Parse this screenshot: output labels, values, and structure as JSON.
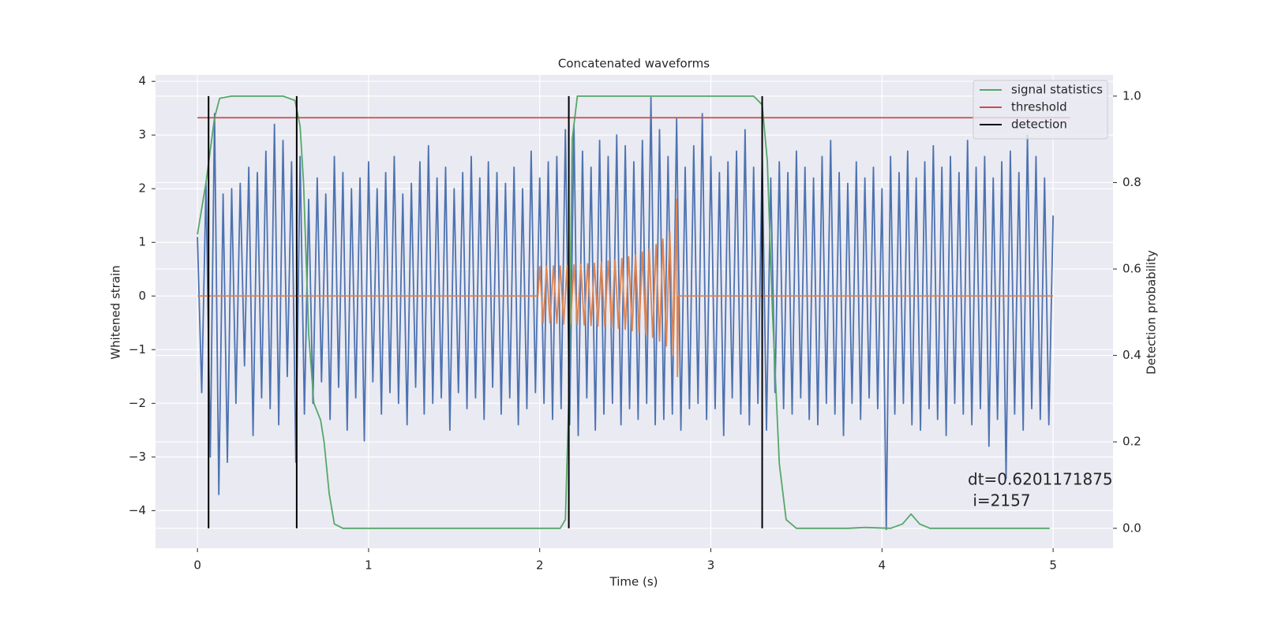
{
  "chart_data": {
    "type": "line",
    "title": "Concatenated waveforms",
    "xlabel": "Time (s)",
    "ylabel": "Whitened strain",
    "y2label": "Detection probability",
    "xlim": [
      -0.245,
      5.35
    ],
    "xticks": [
      0,
      1,
      2,
      3,
      4,
      5
    ],
    "ylim": [
      -4.7,
      4.12
    ],
    "yticks": [
      {
        "value": -4,
        "label": "−4"
      },
      {
        "value": -3,
        "label": "−3"
      },
      {
        "value": -2,
        "label": "−2"
      },
      {
        "value": -1,
        "label": "−1"
      },
      0,
      1,
      2,
      3,
      4
    ],
    "y2lim": [
      -0.046,
      1.049
    ],
    "y2ticks": [
      {
        "value": 0,
        "label": "0.0"
      },
      0.2,
      0.4,
      0.6,
      0.8,
      {
        "value": 1,
        "label": "1.0"
      }
    ],
    "grid": true,
    "legend": "upper right",
    "series": [
      {
        "color": "#4c72b0",
        "x": [
          0,
          0.025,
          0.05,
          0.075,
          0.1,
          0.125,
          0.15,
          0.175,
          0.2,
          0.225,
          0.25,
          0.275,
          0.3,
          0.325,
          0.35,
          0.375,
          0.4,
          0.425,
          0.45,
          0.475,
          0.5,
          0.525,
          0.55,
          0.575,
          0.6,
          0.625,
          0.65,
          0.675,
          0.7,
          0.725,
          0.75,
          0.775,
          0.8,
          0.825,
          0.85,
          0.875,
          0.9,
          0.925,
          0.95,
          0.975,
          1,
          1.025,
          1.05,
          1.075,
          1.1,
          1.125,
          1.15,
          1.175,
          1.2,
          1.225,
          1.25,
          1.275,
          1.3,
          1.325,
          1.35,
          1.375,
          1.4,
          1.425,
          1.45,
          1.475,
          1.5,
          1.525,
          1.55,
          1.575,
          1.6,
          1.625,
          1.65,
          1.675,
          1.7,
          1.725,
          1.75,
          1.775,
          1.8,
          1.825,
          1.85,
          1.875,
          1.9,
          1.925,
          1.95,
          1.975,
          2,
          2.025,
          2.05,
          2.075,
          2.1,
          2.125,
          2.15,
          2.175,
          2.2,
          2.225,
          2.25,
          2.275,
          2.3,
          2.325,
          2.35,
          2.375,
          2.4,
          2.425,
          2.45,
          2.475,
          2.5,
          2.525,
          2.55,
          2.575,
          2.6,
          2.625,
          2.65,
          2.675,
          2.7,
          2.725,
          2.75,
          2.775,
          2.8,
          2.825,
          2.85,
          2.875,
          2.9,
          2.925,
          2.95,
          2.975,
          3,
          3.025,
          3.05,
          3.075,
          3.1,
          3.125,
          3.15,
          3.175,
          3.2,
          3.225,
          3.25,
          3.275,
          3.3,
          3.325,
          3.35,
          3.375,
          3.4,
          3.425,
          3.45,
          3.475,
          3.5,
          3.525,
          3.55,
          3.575,
          3.6,
          3.625,
          3.65,
          3.675,
          3.7,
          3.725,
          3.75,
          3.775,
          3.8,
          3.825,
          3.85,
          3.875,
          3.9,
          3.925,
          3.95,
          3.975,
          4,
          4.025,
          4.05,
          4.075,
          4.1,
          4.125,
          4.15,
          4.175,
          4.2,
          4.225,
          4.25,
          4.275,
          4.3,
          4.325,
          4.35,
          4.375,
          4.4,
          4.425,
          4.45,
          4.475,
          4.5,
          4.525,
          4.55,
          4.575,
          4.6,
          4.625,
          4.65,
          4.675,
          4.7,
          4.725,
          4.75,
          4.775,
          4.8,
          4.825,
          4.85,
          4.875,
          4.9,
          4.925,
          4.95,
          4.975,
          5
        ],
        "values": [
          1.1,
          -1.8,
          2.1,
          -3.0,
          3.4,
          -3.7,
          1.9,
          -3.1,
          2.0,
          -2.0,
          2.1,
          -1.3,
          2.4,
          -2.6,
          2.3,
          -1.9,
          2.7,
          -2.1,
          3.2,
          -2.4,
          2.9,
          -1.5,
          2.5,
          -3.1,
          2.6,
          -2.2,
          1.8,
          -2.0,
          2.2,
          -1.6,
          1.9,
          -2.3,
          2.6,
          -1.7,
          2.3,
          -2.5,
          2.0,
          -1.9,
          2.2,
          -2.7,
          2.5,
          -1.6,
          2.0,
          -2.2,
          2.3,
          -1.8,
          2.6,
          -2.0,
          1.9,
          -2.4,
          2.1,
          -1.7,
          2.5,
          -2.2,
          2.8,
          -2.0,
          2.2,
          -1.9,
          2.4,
          -2.5,
          2.0,
          -1.8,
          2.3,
          -2.1,
          2.6,
          -1.9,
          2.2,
          -2.3,
          2.5,
          -1.7,
          2.3,
          -2.2,
          2.1,
          -1.9,
          2.4,
          -2.4,
          2.0,
          -2.1,
          2.7,
          -1.8,
          2.2,
          -2.0,
          2.5,
          -2.3,
          2.6,
          -2.1,
          3.1,
          -2.4,
          3.2,
          -2.6,
          2.7,
          -1.9,
          2.4,
          -2.5,
          2.9,
          -2.2,
          2.6,
          -2.0,
          3.0,
          -2.4,
          2.8,
          -2.1,
          2.5,
          -2.3,
          2.9,
          -2.0,
          3.7,
          -2.4,
          3.1,
          -2.3,
          2.6,
          -2.2,
          3.3,
          -2.5,
          2.4,
          -2.1,
          2.8,
          -2.0,
          3.4,
          -2.3,
          2.6,
          -2.1,
          2.3,
          -2.6,
          2.5,
          -1.9,
          2.7,
          -2.2,
          3.1,
          -2.4,
          2.4,
          -2.0,
          2.6,
          -2.5,
          2.2,
          -1.8,
          2.5,
          -2.1,
          2.3,
          -2.2,
          2.7,
          -1.9,
          2.4,
          -2.3,
          2.2,
          -2.4,
          2.6,
          -2.0,
          2.9,
          -2.2,
          2.3,
          -2.6,
          2.1,
          -2.0,
          2.5,
          -2.3,
          2.2,
          -1.9,
          2.4,
          -2.1,
          2.0,
          -4.35,
          2.6,
          -2.2,
          2.3,
          -2.0,
          2.7,
          -2.4,
          2.2,
          -2.5,
          2.5,
          -2.1,
          2.8,
          -2.3,
          2.4,
          -2.6,
          2.6,
          -2.0,
          2.3,
          -2.2,
          2.9,
          -2.4,
          2.4,
          -2.1,
          2.6,
          -2.8,
          2.2,
          -2.3,
          2.5,
          -3.4,
          2.7,
          -2.2,
          2.3,
          -2.5,
          3.0,
          -2.1,
          2.6,
          -2.3,
          2.2,
          -2.4,
          1.5
        ]
      },
      {
        "color": "#dd8452",
        "x": [
          0,
          1.99,
          2.0,
          2.02,
          2.04,
          2.06,
          2.08,
          2.1,
          2.12,
          2.14,
          2.16,
          2.18,
          2.2,
          2.22,
          2.24,
          2.26,
          2.28,
          2.3,
          2.32,
          2.34,
          2.36,
          2.38,
          2.4,
          2.42,
          2.44,
          2.46,
          2.48,
          2.5,
          2.52,
          2.54,
          2.56,
          2.58,
          2.6,
          2.62,
          2.64,
          2.66,
          2.68,
          2.7,
          2.72,
          2.74,
          2.76,
          2.78,
          2.8,
          2.805,
          2.81,
          5
        ],
        "values": [
          0,
          0,
          0.55,
          -0.5,
          0.55,
          -0.5,
          0.56,
          -0.51,
          0.56,
          -0.52,
          0.57,
          -0.52,
          0.58,
          -0.53,
          0.59,
          -0.54,
          0.6,
          -0.55,
          0.61,
          -0.56,
          0.63,
          -0.57,
          0.65,
          -0.59,
          0.67,
          -0.6,
          0.7,
          -0.62,
          0.73,
          -0.65,
          0.77,
          -0.68,
          0.82,
          -0.72,
          0.88,
          -0.77,
          0.96,
          -0.84,
          1.06,
          -0.93,
          1.2,
          -1.1,
          1.8,
          -1.5,
          0,
          0
        ]
      },
      {
        "name": "signal statistics",
        "color": "#55a868",
        "axis": "y2",
        "x": [
          0,
          0.05,
          0.1,
          0.13,
          0.2,
          0.5,
          0.57,
          0.6,
          0.62,
          0.65,
          0.68,
          0.72,
          0.74,
          0.77,
          0.8,
          0.85,
          2.12,
          2.15,
          2.17,
          2.19,
          2.22,
          3.25,
          3.3,
          3.33,
          3.36,
          3.4,
          3.44,
          3.5,
          3.8,
          3.9,
          4.05,
          4.12,
          4.17,
          4.22,
          4.28,
          4.98
        ],
        "values": [
          0.68,
          0.8,
          0.95,
          0.995,
          1.0,
          1.0,
          0.99,
          0.93,
          0.8,
          0.45,
          0.29,
          0.25,
          0.2,
          0.08,
          0.01,
          0.0,
          0.0,
          0.02,
          0.3,
          0.9,
          1.0,
          1.0,
          0.98,
          0.85,
          0.5,
          0.15,
          0.02,
          0.0,
          0.0,
          0.002,
          0.0,
          0.01,
          0.033,
          0.01,
          0.0,
          0.0
        ]
      },
      {
        "name": "threshold",
        "color": "#c44e52",
        "axis": "y2",
        "x": [
          0,
          5.1
        ],
        "values": [
          0.95,
          0.95
        ]
      },
      {
        "name": "detection",
        "color": "#000000",
        "axis": "y2",
        "style": "vlines",
        "x": [
          0.065,
          0.58,
          2.17,
          3.3
        ],
        "range": [
          0,
          1
        ]
      }
    ],
    "annotation": [
      "dt=0.6201171875",
      " i=2157"
    ]
  }
}
